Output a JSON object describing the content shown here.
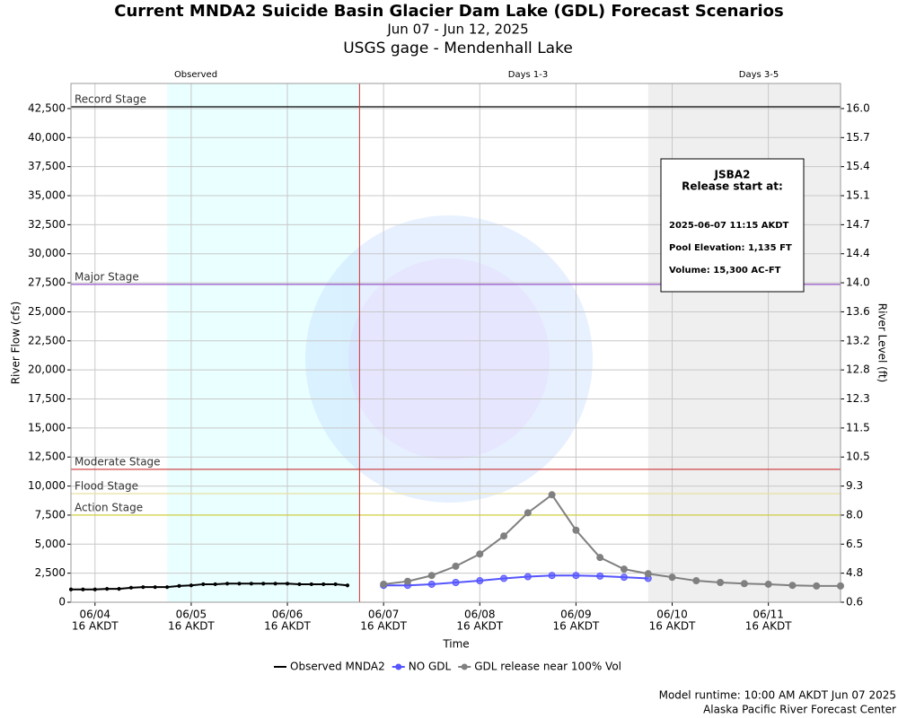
{
  "chart_data": {
    "type": "line",
    "title": "Current MNDA2 Suicide Basin Glacier Dam Lake (GDL) Forecast Scenarios",
    "subtitle": "Jun 07 - Jun 12, 2025",
    "subtitle2": "USGS gage - Mendenhall Lake",
    "x_label": "Time",
    "y_label": "River Flow (cfs)",
    "y2_label": "River Level (ft)",
    "xlim": [
      "2025-06-04T10:00",
      "2025-06-12T10:00"
    ],
    "xticks": [
      {
        "value": "2025-06-04T16:00",
        "label": [
          "06/04",
          "16 AKDT"
        ]
      },
      {
        "value": "2025-06-05T16:00",
        "label": [
          "06/05",
          "16 AKDT"
        ]
      },
      {
        "value": "2025-06-06T16:00",
        "label": [
          "06/06",
          "16 AKDT"
        ]
      },
      {
        "value": "2025-06-07T16:00",
        "label": [
          "06/07",
          "16 AKDT"
        ]
      },
      {
        "value": "2025-06-08T16:00",
        "label": [
          "06/08",
          "16 AKDT"
        ]
      },
      {
        "value": "2025-06-09T16:00",
        "label": [
          "06/09",
          "16 AKDT"
        ]
      },
      {
        "value": "2025-06-10T16:00",
        "label": [
          "06/10",
          "16 AKDT"
        ]
      },
      {
        "value": "2025-06-11T16:00",
        "label": [
          "06/11",
          "16 AKDT"
        ]
      }
    ],
    "ylim": [
      0,
      44660
    ],
    "yticks": [
      0,
      {
        "value": 2500,
        "label": "2,500"
      },
      {
        "value": 5000,
        "label": "5,000"
      },
      {
        "value": 7500,
        "label": "7,500"
      },
      {
        "value": 10000,
        "label": "10,000"
      },
      {
        "value": 12500,
        "label": "12,500"
      },
      {
        "value": 15000,
        "label": "15,000"
      },
      {
        "value": 17500,
        "label": "17,500"
      },
      {
        "value": 20000,
        "label": "20,000"
      },
      {
        "value": 22500,
        "label": "22,500"
      },
      {
        "value": 25000,
        "label": "25,000"
      },
      {
        "value": 27500,
        "label": "27,500"
      },
      {
        "value": 30000,
        "label": "30,000"
      },
      {
        "value": 32500,
        "label": "32,500"
      },
      {
        "value": 35000,
        "label": "35,000"
      },
      {
        "value": 37500,
        "label": "37,500"
      },
      {
        "value": 40000,
        "label": "40,000"
      },
      {
        "value": 42500,
        "label": "42,500"
      }
    ],
    "y2ticks": [
      0.6,
      4.8,
      6.5,
      {
        "value": 8,
        "label": "8.0"
      },
      9.3,
      10.5,
      11.5,
      12.3,
      12.8,
      13.2,
      13.6,
      {
        "value": 14,
        "label": "14.0"
      },
      14.4,
      14.7,
      15.1,
      15.4,
      15.7,
      {
        "value": 16,
        "label": "16.0"
      }
    ],
    "grid": true,
    "sections": [
      "Observed",
      "Days 1-3",
      "Days 3-5"
    ],
    "bands": [
      {
        "start": "2025-06-05T10:00",
        "end": "2025-06-07T10:00",
        "color": "#eaffff"
      },
      {
        "start": "2025-06-10T10:00",
        "end": "2025-06-12T10:00",
        "color": "#efefef"
      }
    ],
    "forecast_start": {
      "value": "2025-06-07T10:00",
      "color": "#cc3333"
    },
    "stages": [
      {
        "name": "Record Stage",
        "value": 42650,
        "color": "#000000"
      },
      {
        "name": "Major Stage",
        "value": 27360,
        "color": "#9955cc"
      },
      {
        "name": "Moderate Stage",
        "value": 11440,
        "color": "#cc3333"
      },
      {
        "name": "Flood Stage",
        "value": 9350,
        "color": "#e8e0a0"
      },
      {
        "name": "Action Stage",
        "value": 7500,
        "color": "#cccc33"
      }
    ],
    "info_box": {
      "title": "JSBA2",
      "subtitle": "Release start at:",
      "lines": [
        "2025-06-07 11:15 AKDT",
        "Pool Elevation: 1,135 FT",
        "Volume: 15,300 AC-FT"
      ]
    },
    "series": [
      {
        "name": "Observed MNDA2",
        "color": "#000000",
        "marker": 1.6,
        "x": [
          "2025-06-04T10:00",
          "2025-06-04T13:00",
          "2025-06-04T16:00",
          "2025-06-04T19:00",
          "2025-06-04T22:00",
          "2025-06-05T01:00",
          "2025-06-05T04:00",
          "2025-06-05T07:00",
          "2025-06-05T10:00",
          "2025-06-05T13:00",
          "2025-06-05T16:00",
          "2025-06-05T19:00",
          "2025-06-05T22:00",
          "2025-06-06T01:00",
          "2025-06-06T04:00",
          "2025-06-06T07:00",
          "2025-06-06T10:00",
          "2025-06-06T13:00",
          "2025-06-06T16:00",
          "2025-06-06T19:00",
          "2025-06-06T22:00",
          "2025-06-07T01:00",
          "2025-06-07T04:00",
          "2025-06-07T07:00"
        ],
        "values": [
          1100,
          1100,
          1100,
          1150,
          1150,
          1250,
          1300,
          1300,
          1300,
          1400,
          1450,
          1550,
          1550,
          1600,
          1600,
          1600,
          1600,
          1600,
          1600,
          1550,
          1550,
          1550,
          1550,
          1450
        ]
      },
      {
        "name": "NO GDL",
        "color": "#5555ff",
        "marker": 3.5,
        "x": [
          "2025-06-07T16:00",
          "2025-06-07T22:00",
          "2025-06-08T04:00",
          "2025-06-08T10:00",
          "2025-06-08T16:00",
          "2025-06-08T22:00",
          "2025-06-09T04:00",
          "2025-06-09T10:00",
          "2025-06-09T16:00",
          "2025-06-09T22:00",
          "2025-06-10T04:00",
          "2025-06-10T10:00"
        ],
        "values": [
          1450,
          1450,
          1550,
          1700,
          1850,
          2050,
          2200,
          2300,
          2300,
          2250,
          2150,
          2050
        ]
      },
      {
        "name": "GDL release near 100% Vol",
        "color": "#808080",
        "marker": 3.5,
        "x": [
          "2025-06-07T16:00",
          "2025-06-07T22:00",
          "2025-06-08T04:00",
          "2025-06-08T10:00",
          "2025-06-08T16:00",
          "2025-06-08T22:00",
          "2025-06-09T04:00",
          "2025-06-09T10:00",
          "2025-06-09T16:00",
          "2025-06-09T22:00",
          "2025-06-10T04:00",
          "2025-06-10T10:00",
          "2025-06-10T16:00",
          "2025-06-10T22:00",
          "2025-06-11T04:00",
          "2025-06-11T10:00",
          "2025-06-11T16:00",
          "2025-06-11T22:00",
          "2025-06-12T04:00",
          "2025-06-12T10:00"
        ],
        "values": [
          1550,
          1800,
          2300,
          3100,
          4150,
          5700,
          7700,
          9250,
          6200,
          3850,
          2850,
          2450,
          2150,
          1850,
          1700,
          1600,
          1550,
          1450,
          1400,
          1400
        ]
      }
    ],
    "footer": [
      "Model runtime: 10:00 AM AKDT Jun 07 2025",
      "Alaska Pacific River Forecast Center"
    ]
  }
}
